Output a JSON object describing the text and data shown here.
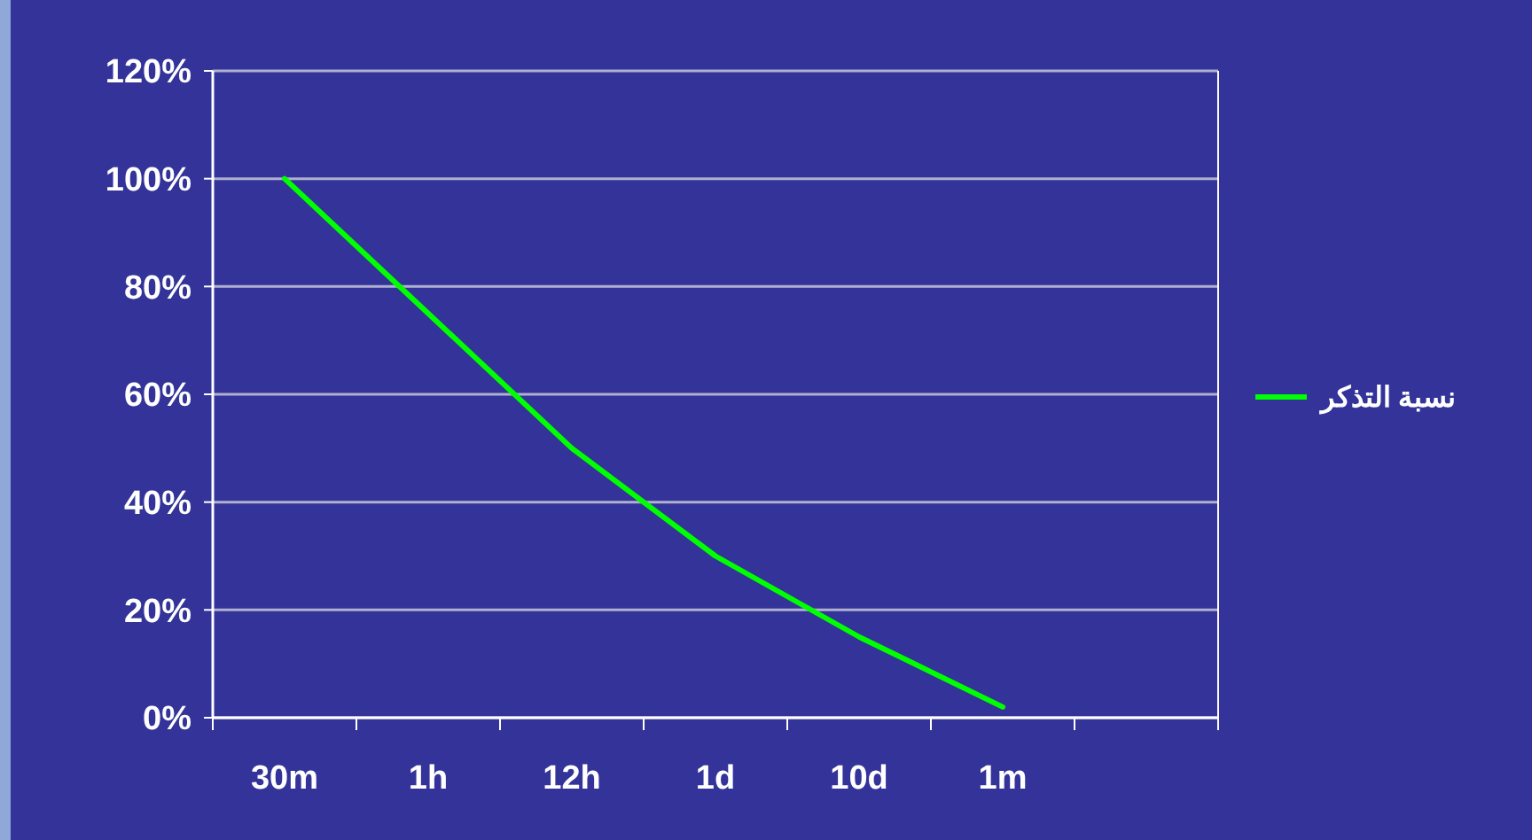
{
  "chart_data": {
    "type": "line",
    "categories": [
      "30m",
      "1h",
      "12h",
      "1d",
      "10d",
      "1m",
      null
    ],
    "series": [
      {
        "name": "نسبة التذكر",
        "color": "#00ff00",
        "values": [
          100,
          75,
          50,
          30,
          15,
          2,
          null
        ]
      }
    ],
    "ylim": [
      0,
      120
    ],
    "yticks": [
      {
        "value": 0,
        "label": "0%"
      },
      {
        "value": 20,
        "label": "20%"
      },
      {
        "value": 40,
        "label": "40%"
      },
      {
        "value": 60,
        "label": "60%"
      },
      {
        "value": 80,
        "label": "80%"
      },
      {
        "value": 100,
        "label": "100%"
      },
      {
        "value": 120,
        "label": "120%"
      }
    ],
    "grid": "y",
    "legend": "right",
    "marker": "none",
    "line_style": "solid"
  }
}
